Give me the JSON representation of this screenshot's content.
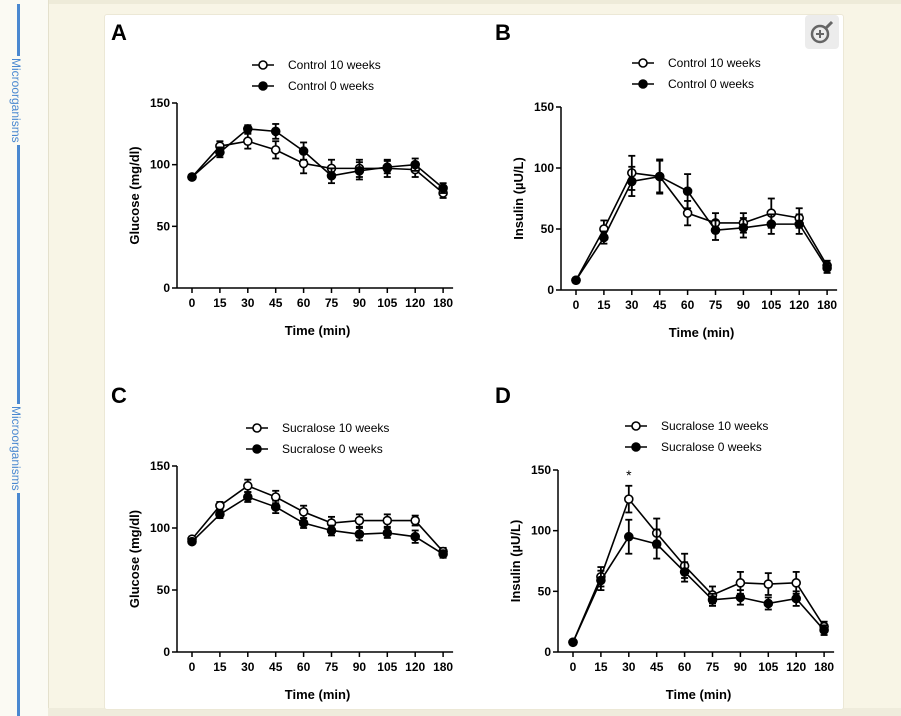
{
  "sidebar": {
    "labels": [
      "Microorganisms",
      "Microorganisms"
    ]
  },
  "toolbar": {
    "zoom_icon": "zoom-in-icon"
  },
  "chart_data": [
    {
      "panel": "A",
      "type": "line",
      "x": [
        "0",
        "15",
        "30",
        "45",
        "60",
        "75",
        "90",
        "105",
        "120",
        "180"
      ],
      "ylabel": "Glucose (mg/dl)",
      "xlabel": "Time (min)",
      "ylim": [
        0,
        150
      ],
      "yticks": [
        0,
        50,
        100,
        150
      ],
      "series": [
        {
          "name": "Control 10 weeks",
          "marker": "open",
          "values": [
            90,
            115,
            119,
            112,
            101,
            97,
            97,
            97,
            96,
            77
          ],
          "err": [
            2,
            4,
            6,
            7,
            8,
            7,
            7,
            7,
            6,
            4
          ]
        },
        {
          "name": "Control 0 weeks",
          "marker": "filled",
          "values": [
            90,
            110,
            129,
            127,
            111,
            91,
            95,
            98,
            100,
            81
          ],
          "err": [
            2,
            4,
            3,
            6,
            7,
            6,
            7,
            5,
            5,
            4
          ]
        }
      ]
    },
    {
      "panel": "B",
      "type": "line",
      "x": [
        "0",
        "15",
        "30",
        "45",
        "60",
        "75",
        "90",
        "105",
        "120",
        "180"
      ],
      "ylabel": "Insulin (µU/L)",
      "xlabel": "Time (min)",
      "ylim": [
        0,
        150
      ],
      "yticks": [
        0,
        50,
        100,
        150
      ],
      "series": [
        {
          "name": "Control 10 weeks",
          "marker": "open",
          "values": [
            8,
            50,
            96,
            93,
            63,
            55,
            55,
            63,
            59,
            20
          ],
          "err": [
            1,
            7,
            14,
            14,
            10,
            8,
            8,
            12,
            8,
            4
          ]
        },
        {
          "name": "Control 0 weeks",
          "marker": "filled",
          "values": [
            8,
            43,
            89,
            93,
            81,
            49,
            51,
            54,
            54,
            18
          ],
          "err": [
            1,
            5,
            12,
            13,
            14,
            8,
            8,
            8,
            8,
            4
          ]
        }
      ]
    },
    {
      "panel": "C",
      "type": "line",
      "x": [
        "0",
        "15",
        "30",
        "45",
        "60",
        "75",
        "90",
        "105",
        "120",
        "180"
      ],
      "ylabel": "Glucose (mg/dl)",
      "xlabel": "Time (min)",
      "ylim": [
        0,
        150
      ],
      "yticks": [
        0,
        50,
        100,
        150
      ],
      "series": [
        {
          "name": "Sucralose 10 weeks",
          "marker": "open",
          "values": [
            91,
            118,
            134,
            125,
            113,
            104,
            106,
            106,
            106,
            81
          ],
          "err": [
            2,
            3,
            5,
            5,
            5,
            5,
            5,
            5,
            4,
            3
          ]
        },
        {
          "name": "Sucralose 0 weeks",
          "marker": "filled",
          "values": [
            89,
            111,
            125,
            117,
            104,
            98,
            95,
            96,
            93,
            79
          ],
          "err": [
            2,
            3,
            4,
            5,
            4,
            4,
            5,
            4,
            5,
            3
          ]
        }
      ]
    },
    {
      "panel": "D",
      "type": "line",
      "x": [
        "0",
        "15",
        "30",
        "45",
        "60",
        "75",
        "90",
        "105",
        "120",
        "180"
      ],
      "ylabel": "Insulin (µU/L)",
      "xlabel": "Time (min)",
      "ylim": [
        0,
        150
      ],
      "yticks": [
        0,
        50,
        100,
        150
      ],
      "annotation": {
        "text": "*",
        "at_x": "30"
      },
      "series": [
        {
          "name": "Sucralose 10 weeks",
          "marker": "open",
          "values": [
            8,
            62,
            126,
            98,
            71,
            47,
            57,
            56,
            57,
            21
          ],
          "err": [
            1,
            8,
            11,
            12,
            10,
            7,
            9,
            9,
            9,
            4
          ]
        },
        {
          "name": "Sucralose 0 weeks",
          "marker": "filled",
          "values": [
            8,
            59,
            95,
            89,
            66,
            43,
            45,
            40,
            44,
            18
          ],
          "err": [
            1,
            8,
            14,
            12,
            8,
            5,
            6,
            5,
            6,
            4
          ]
        }
      ]
    }
  ]
}
